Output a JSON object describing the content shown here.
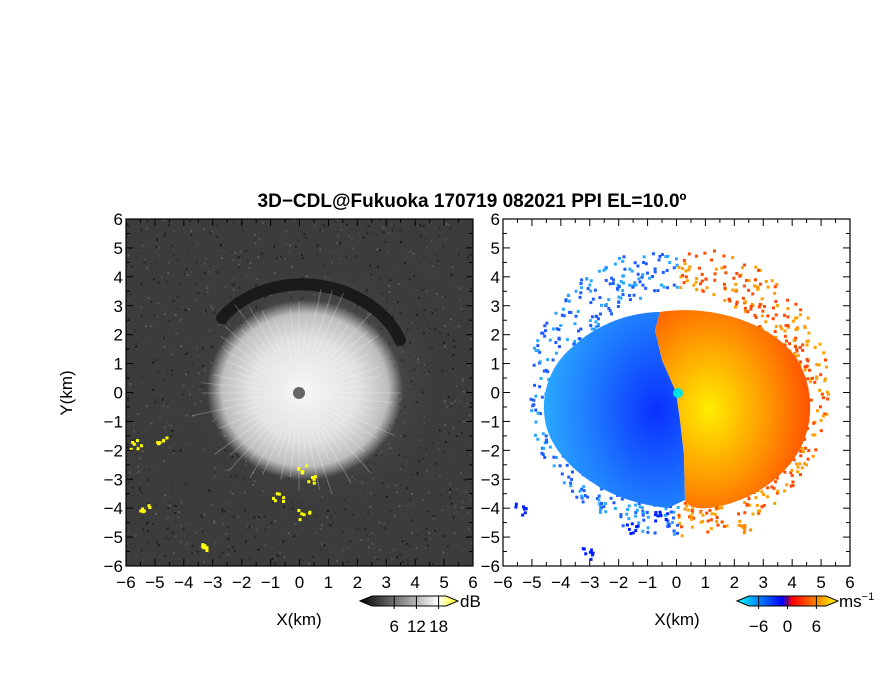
{
  "title": "3D−CDL@Fukuoka 170719 082021 PPI EL=10.0º",
  "chart_data": [
    {
      "type": "heatmap",
      "name": "snr-ppi",
      "xlabel": "X(km)",
      "ylabel": "Y(km)",
      "xlim": [
        -6,
        6
      ],
      "ylim": [
        -6,
        6
      ],
      "x_ticks": [
        -6,
        -5,
        -4,
        -3,
        -2,
        -1,
        0,
        1,
        2,
        3,
        4,
        5,
        6
      ],
      "y_ticks": [
        -6,
        -5,
        -4,
        -3,
        -2,
        -1,
        0,
        1,
        2,
        3,
        4,
        5,
        6
      ],
      "x_tick_labels": [
        "−6",
        "−5",
        "−4",
        "−3",
        "−2",
        "−1",
        "0",
        "1",
        "2",
        "3",
        "4",
        "5",
        "6"
      ],
      "y_tick_labels": [
        "−6",
        "−5",
        "−4",
        "−3",
        "−2",
        "−1",
        "0",
        "1",
        "2",
        "3",
        "4",
        "5",
        "6"
      ],
      "colorbar": {
        "unit": "dB",
        "ticks": [
          6,
          12,
          18
        ],
        "tick_labels": [
          "6",
          "12",
          "18"
        ],
        "colors": [
          "#000000",
          "#ffffff",
          "#ffff00"
        ]
      }
    },
    {
      "type": "heatmap",
      "name": "doppler-velocity-ppi",
      "xlabel": "X(km)",
      "ylabel": "",
      "xlim": [
        -6,
        6
      ],
      "ylim": [
        -6,
        6
      ],
      "x_ticks": [
        -6,
        -5,
        -4,
        -3,
        -2,
        -1,
        0,
        1,
        2,
        3,
        4,
        5,
        6
      ],
      "y_ticks": [
        -6,
        -5,
        -4,
        -3,
        -2,
        -1,
        0,
        1,
        2,
        3,
        4,
        5,
        6
      ],
      "x_tick_labels": [
        "−6",
        "−5",
        "−4",
        "−3",
        "−2",
        "−1",
        "0",
        "1",
        "2",
        "3",
        "4",
        "5",
        "6"
      ],
      "y_tick_labels": [
        "−6",
        "−5",
        "−4",
        "−3",
        "−2",
        "−1",
        "0",
        "1",
        "2",
        "3",
        "4",
        "5",
        "6"
      ],
      "colorbar": {
        "unit": "ms",
        "unit_exponent": "−1",
        "ticks": [
          -6,
          0,
          6
        ],
        "tick_labels": [
          "−6",
          "0",
          "6"
        ],
        "colors": [
          "#00ffff",
          "#0000ff",
          "#ff0000",
          "#ffff00"
        ]
      }
    }
  ]
}
